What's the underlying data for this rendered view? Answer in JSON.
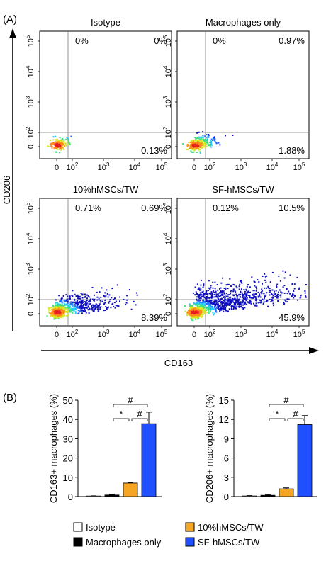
{
  "panel_labels": {
    "a": "(A)",
    "b": "(B)"
  },
  "flow": {
    "x_axis_label": "CD163",
    "y_axis_label": "CD206",
    "x_ticks": [
      "0",
      "10",
      "10",
      "10",
      "10"
    ],
    "x_tick_exps": [
      "",
      "2",
      "3",
      "4",
      "5"
    ],
    "y_ticks": [
      "0",
      "10",
      "10",
      "10",
      "10"
    ],
    "y_tick_exps": [
      "",
      "2",
      "3",
      "4",
      "5"
    ],
    "plots": [
      {
        "title": "Isotype",
        "ul": "0%",
        "ur": "0%",
        "lr": "0.13%",
        "spread": 0.0
      },
      {
        "title": "Macrophages only",
        "ul": "0%",
        "ur": "0.97%",
        "lr": "1.88%",
        "spread": 0.15
      },
      {
        "title": "10%hMSCs/TW",
        "ul": "0.71%",
        "ur": "0.69%",
        "lr": "8.39%",
        "spread": 0.55
      },
      {
        "title": "SF-hMSCs/TW",
        "ul": "0.12%",
        "ur": "10.5%",
        "lr": "45.9%",
        "spread": 1.0
      }
    ]
  },
  "chart_data": [
    {
      "type": "bar",
      "categories": [
        "Isotype",
        "Macrophages only",
        "10%hMSCs/TW",
        "SF-hMSCs/TW"
      ],
      "values": [
        0.3,
        0.8,
        7.0,
        37.8
      ],
      "errors": [
        0.1,
        0.3,
        0.3,
        6.0
      ],
      "ylabel": "CD163+ macrophages (%)",
      "ylim": [
        0,
        50
      ],
      "yticks": [
        0,
        10,
        20,
        30,
        40,
        50
      ],
      "significance": [
        {
          "from": 1,
          "to": 2,
          "label": "*"
        },
        {
          "from": 2,
          "to": 3,
          "label": "#"
        },
        {
          "from": 1,
          "to": 3,
          "label": "#"
        }
      ]
    },
    {
      "type": "bar",
      "categories": [
        "Isotype",
        "Macrophages only",
        "10%hMSCs/TW",
        "SF-hMSCs/TW"
      ],
      "values": [
        0.1,
        0.2,
        1.2,
        11.2
      ],
      "errors": [
        0.05,
        0.1,
        0.15,
        1.4
      ],
      "ylabel": "CD206+ macrophages (%)",
      "ylim": [
        0,
        15
      ],
      "yticks": [
        0,
        3,
        6,
        9,
        12,
        15
      ],
      "significance": [
        {
          "from": 1,
          "to": 2,
          "label": "*"
        },
        {
          "from": 2,
          "to": 3,
          "label": "#"
        },
        {
          "from": 1,
          "to": 3,
          "label": "#"
        }
      ]
    }
  ],
  "legend": [
    {
      "label": "Isotype",
      "color": "#ffffff"
    },
    {
      "label": "Macrophages only",
      "color": "#000000"
    },
    {
      "label": "10%hMSCs/TW",
      "color": "#f5a623"
    },
    {
      "label": "SF-hMSCs/TW",
      "color": "#1f4fff"
    }
  ]
}
